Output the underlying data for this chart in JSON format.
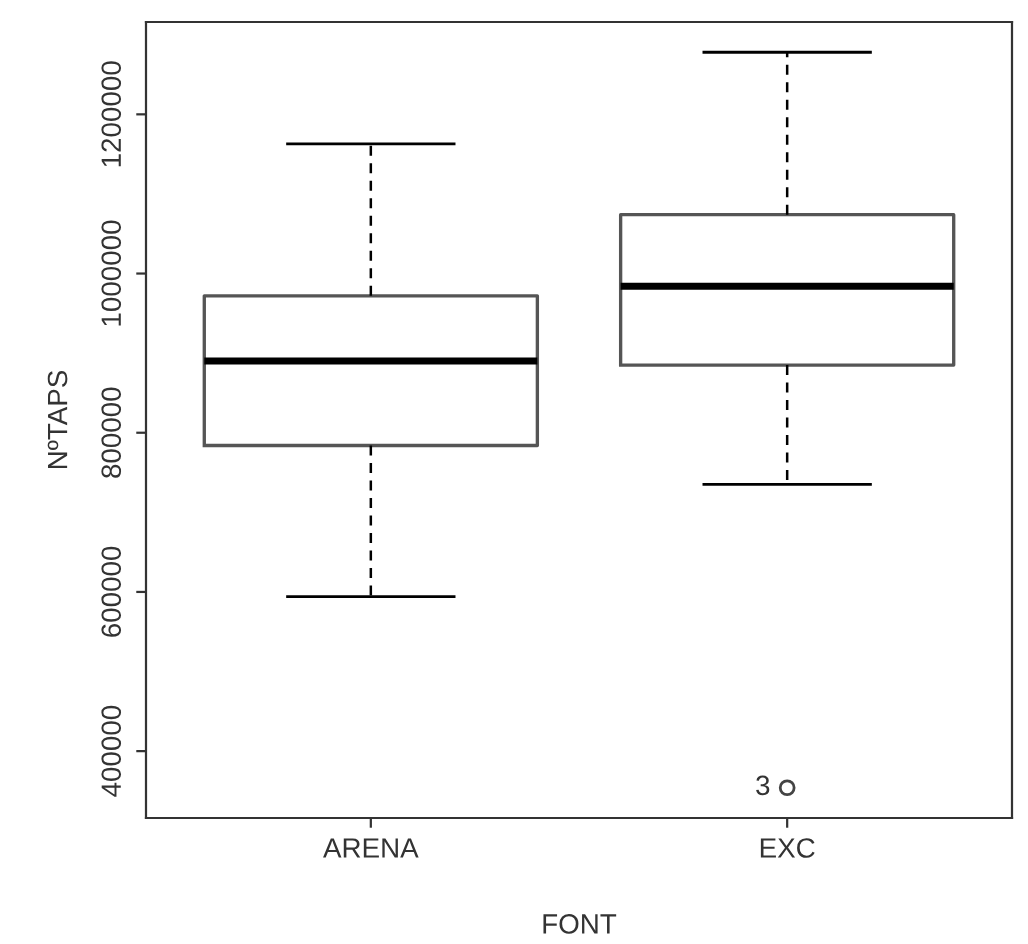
{
  "chart_data": {
    "type": "box",
    "xlabel": "FONT",
    "ylabel": "NºTAPS",
    "categories": [
      "ARENA",
      "EXC"
    ],
    "boxes": [
      {
        "low": 594000,
        "q1": 784000,
        "median": 890000,
        "q3": 972000,
        "high": 1163000
      },
      {
        "low": 735000,
        "q1": 885000,
        "median": 984000,
        "q3": 1074000,
        "high": 1278000,
        "outliers": [
          354000
        ]
      }
    ],
    "ylim": [
      316000,
      1316000
    ],
    "yticks": [
      400000,
      600000,
      800000,
      1000000,
      1200000
    ],
    "grid": false,
    "annotations": [
      "3"
    ]
  }
}
